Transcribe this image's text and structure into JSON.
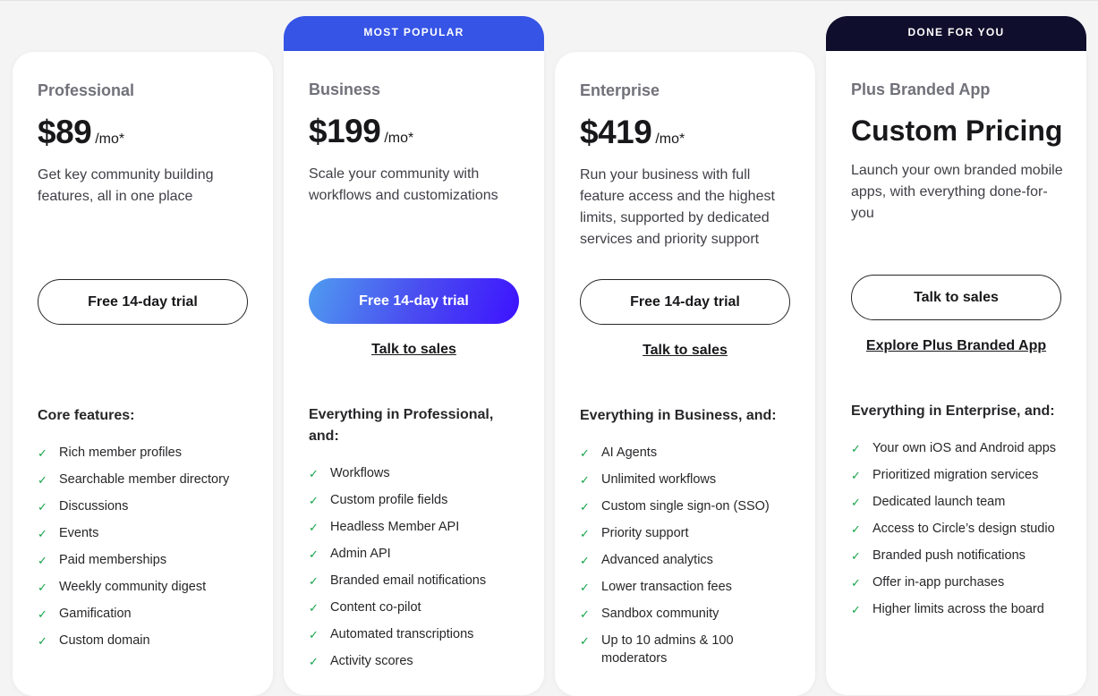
{
  "badges": {
    "business": "MOST POPULAR",
    "plus": "DONE FOR YOU"
  },
  "colors": {
    "popular_badge": "#3654e5",
    "done_badge": "#0f0e2c",
    "check": "#16a34a"
  },
  "plans": [
    {
      "name": "Professional",
      "price": "$89",
      "unit": "/mo*",
      "description": "Get key community building features, all in one place",
      "primary_cta": "Free 14-day trial",
      "features_heading": "Core features:",
      "features": [
        "Rich member profiles",
        "Searchable member directory",
        "Discussions",
        "Events",
        "Paid memberships",
        "Weekly community digest",
        "Gamification",
        "Custom domain"
      ]
    },
    {
      "name": "Business",
      "price": "$199",
      "unit": "/mo*",
      "description": "Scale your community with workflows and customizations",
      "primary_cta": "Free 14-day trial",
      "secondary_cta": "Talk to sales",
      "features_heading": "Everything in Professional, and:",
      "features": [
        "Workflows",
        "Custom profile fields",
        "Headless Member API",
        "Admin API",
        "Branded email notifications",
        "Content co-pilot",
        "Automated transcriptions",
        "Activity scores"
      ]
    },
    {
      "name": "Enterprise",
      "price": "$419",
      "unit": "/mo*",
      "description": "Run your business with full feature access and the highest limits, supported by dedicated services and priority support",
      "primary_cta": "Free 14-day trial",
      "secondary_cta": "Talk to sales",
      "features_heading": "Everything in Business, and:",
      "features": [
        "AI Agents",
        "Unlimited workflows",
        "Custom single sign-on (SSO)",
        "Priority support",
        "Advanced analytics",
        "Lower transaction fees",
        "Sandbox community",
        "Up to 10 admins & 100 moderators"
      ]
    },
    {
      "name": "Plus Branded App",
      "price": "Custom Pricing",
      "description": "Launch your own branded mobile apps, with everything done-for-you",
      "primary_cta": "Talk to sales",
      "secondary_cta": "Explore Plus Branded App",
      "features_heading": "Everything in Enterprise, and:",
      "features": [
        "Your own iOS and Android apps",
        "Prioritized migration services",
        "Dedicated launch team",
        "Access to Circle’s design studio",
        "Branded push notifications",
        "Offer in-app purchases",
        "Higher limits across the board"
      ]
    }
  ]
}
